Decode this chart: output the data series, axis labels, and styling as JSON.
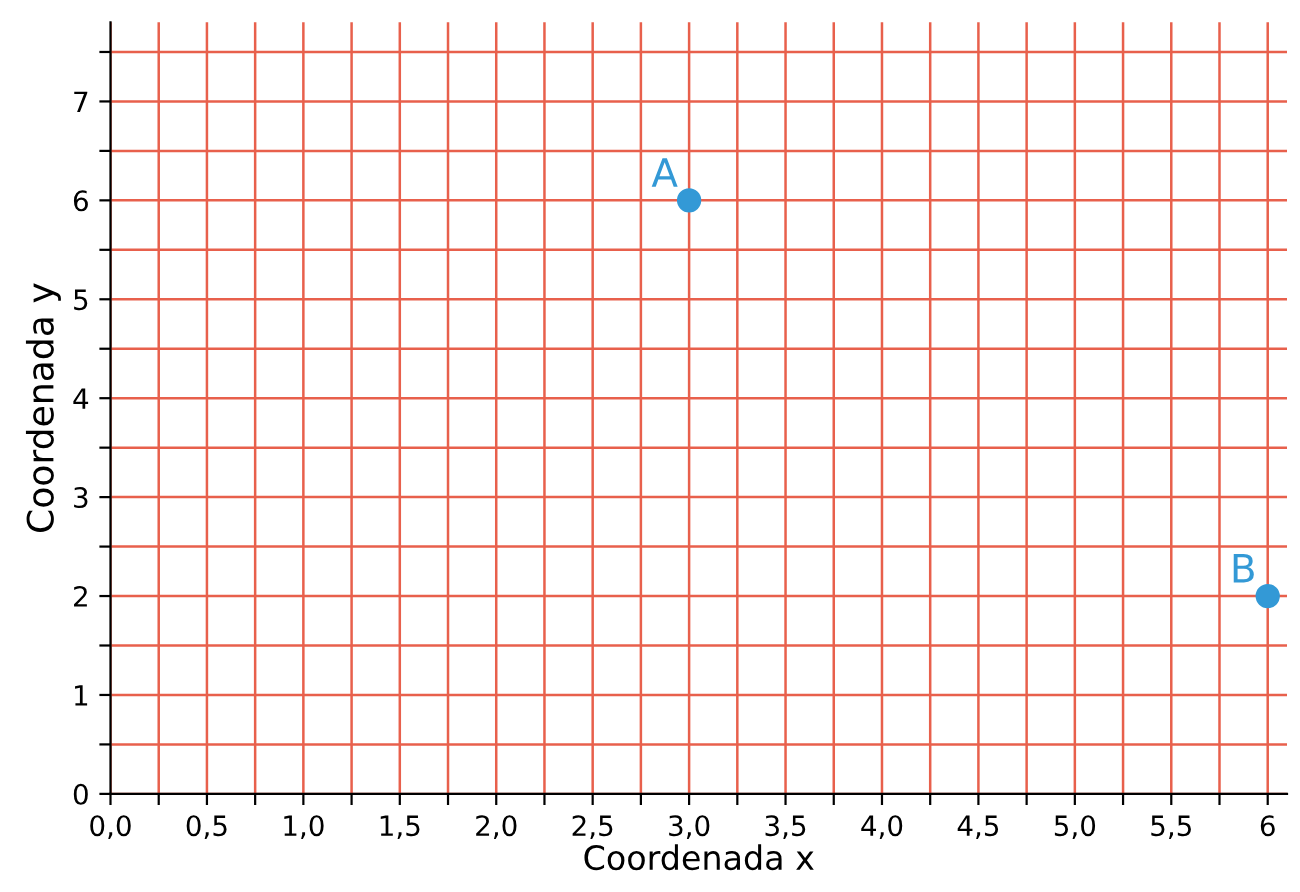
{
  "chart_data": {
    "type": "scatter",
    "xlabel": "Coordenada x",
    "ylabel": "Coordenada y",
    "series": [
      {
        "color": "#3399d6",
        "x": [
          3,
          6
        ],
        "values": [
          6,
          2
        ]
      }
    ],
    "annotations": [
      {
        "text": "A",
        "x": 3,
        "y": 6
      },
      {
        "text": "B",
        "x": 6,
        "y": 2
      }
    ],
    "xlim": [
      0,
      6.1
    ],
    "ylim": [
      0,
      7.8
    ],
    "xticks": [
      {
        "value": 0,
        "label": "0,0"
      },
      {
        "value": 0.25,
        "label": null
      },
      {
        "value": 0.5,
        "label": "0,5"
      },
      {
        "value": 0.75,
        "label": null
      },
      {
        "value": 1,
        "label": "1,0"
      },
      {
        "value": 1.25,
        "label": null
      },
      {
        "value": 1.5,
        "label": "1,5"
      },
      {
        "value": 1.75,
        "label": null
      },
      {
        "value": 2,
        "label": "2,0"
      },
      {
        "value": 2.25,
        "label": null
      },
      {
        "value": 2.5,
        "label": "2,5"
      },
      {
        "value": 2.75,
        "label": null
      },
      {
        "value": 3,
        "label": "3,0"
      },
      {
        "value": 3.25,
        "label": null
      },
      {
        "value": 3.5,
        "label": "3,5"
      },
      {
        "value": 3.75,
        "label": null
      },
      {
        "value": 4,
        "label": "4,0"
      },
      {
        "value": 4.25,
        "label": null
      },
      {
        "value": 4.5,
        "label": "4,5"
      },
      {
        "value": 4.75,
        "label": null
      },
      {
        "value": 5,
        "label": "5,0"
      },
      {
        "value": 5.25,
        "label": null
      },
      {
        "value": 5.5,
        "label": "5,5"
      },
      {
        "value": 5.75,
        "label": null
      },
      {
        "value": 6,
        "label": "6"
      }
    ],
    "yticks": [
      0,
      {
        "value": 0.5,
        "label": null
      },
      1,
      {
        "value": 1.5,
        "label": null
      },
      2,
      {
        "value": 2.5,
        "label": null
      },
      3,
      {
        "value": 3.5,
        "label": null
      },
      4,
      {
        "value": 4.5,
        "label": null
      },
      5,
      {
        "value": 5.5,
        "label": null
      },
      6,
      {
        "value": 6.5,
        "label": null
      },
      7,
      {
        "value": 7.5,
        "label": null
      }
    ],
    "grid": true,
    "marker": "circle"
  }
}
